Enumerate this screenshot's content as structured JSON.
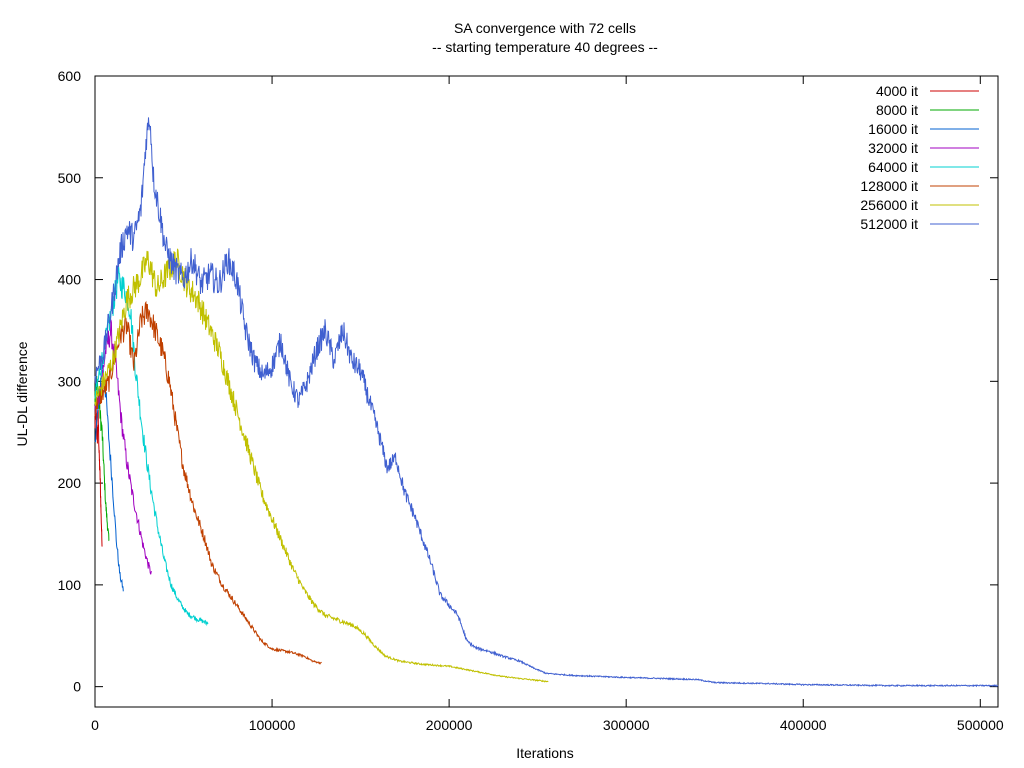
{
  "chart_data": {
    "type": "line",
    "title": "SA convergence with 72 cells",
    "subtitle": "-- starting temperature 40 degrees --",
    "xlabel": "Iterations",
    "ylabel": "UL-DL difference",
    "xlim": [
      0,
      510000
    ],
    "ylim": [
      -20,
      600
    ],
    "x_ticks": [
      0,
      100000,
      200000,
      300000,
      400000,
      500000
    ],
    "y_ticks": [
      0,
      100,
      200,
      300,
      400,
      500,
      600
    ],
    "grid": false,
    "legend_position": "top-right",
    "series": [
      {
        "name": "4000 it",
        "color": "#cc0000",
        "points": [
          [
            0,
            255
          ],
          [
            600,
            275
          ],
          [
            1200,
            240
          ],
          [
            1800,
            265
          ],
          [
            2400,
            225
          ],
          [
            3000,
            200
          ],
          [
            3500,
            165
          ],
          [
            4000,
            140
          ]
        ]
      },
      {
        "name": "8000 it",
        "color": "#00aa00",
        "points": [
          [
            0,
            285
          ],
          [
            1000,
            300
          ],
          [
            2000,
            285
          ],
          [
            3000,
            265
          ],
          [
            4000,
            250
          ],
          [
            5000,
            215
          ],
          [
            6000,
            180
          ],
          [
            7000,
            160
          ],
          [
            8000,
            140
          ]
        ]
      },
      {
        "name": "16000 it",
        "color": "#0060d0",
        "points": [
          [
            0,
            245
          ],
          [
            2000,
            275
          ],
          [
            4000,
            320
          ],
          [
            6000,
            290
          ],
          [
            8000,
            240
          ],
          [
            10000,
            195
          ],
          [
            12000,
            145
          ],
          [
            14000,
            110
          ],
          [
            16000,
            95
          ]
        ]
      },
      {
        "name": "32000 it",
        "color": "#a000c0",
        "points": [
          [
            0,
            270
          ],
          [
            3000,
            290
          ],
          [
            6000,
            330
          ],
          [
            9000,
            350
          ],
          [
            12000,
            310
          ],
          [
            15000,
            260
          ],
          [
            18000,
            220
          ],
          [
            21000,
            190
          ],
          [
            24000,
            165
          ],
          [
            27000,
            140
          ],
          [
            30000,
            120
          ],
          [
            32000,
            110
          ]
        ]
      },
      {
        "name": "64000 it",
        "color": "#00d0d0",
        "points": [
          [
            0,
            285
          ],
          [
            5000,
            330
          ],
          [
            10000,
            375
          ],
          [
            13000,
            400
          ],
          [
            17000,
            390
          ],
          [
            20000,
            370
          ],
          [
            23000,
            310
          ],
          [
            27000,
            250
          ],
          [
            31000,
            200
          ],
          [
            35000,
            160
          ],
          [
            39000,
            125
          ],
          [
            43000,
            100
          ],
          [
            47000,
            85
          ],
          [
            52000,
            72
          ],
          [
            57000,
            67
          ],
          [
            64000,
            62
          ]
        ]
      },
      {
        "name": "128000 it",
        "color": "#c04000",
        "points": [
          [
            0,
            275
          ],
          [
            8000,
            300
          ],
          [
            14000,
            345
          ],
          [
            18000,
            355
          ],
          [
            22000,
            315
          ],
          [
            26000,
            360
          ],
          [
            30000,
            370
          ],
          [
            34000,
            350
          ],
          [
            38000,
            330
          ],
          [
            42000,
            300
          ],
          [
            46000,
            255
          ],
          [
            50000,
            215
          ],
          [
            56000,
            175
          ],
          [
            62000,
            145
          ],
          [
            66000,
            120
          ],
          [
            72000,
            100
          ],
          [
            78000,
            85
          ],
          [
            84000,
            70
          ],
          [
            90000,
            55
          ],
          [
            94000,
            45
          ],
          [
            100000,
            37
          ],
          [
            110000,
            34
          ],
          [
            118000,
            30
          ],
          [
            123000,
            25
          ],
          [
            128000,
            23
          ]
        ]
      },
      {
        "name": "256000 it",
        "color": "#c0c000",
        "points": [
          [
            0,
            280
          ],
          [
            10000,
            320
          ],
          [
            18000,
            380
          ],
          [
            25000,
            400
          ],
          [
            30000,
            420
          ],
          [
            35000,
            390
          ],
          [
            40000,
            405
          ],
          [
            46000,
            420
          ],
          [
            52000,
            395
          ],
          [
            58000,
            380
          ],
          [
            64000,
            355
          ],
          [
            70000,
            330
          ],
          [
            76000,
            295
          ],
          [
            82000,
            260
          ],
          [
            88000,
            225
          ],
          [
            94000,
            190
          ],
          [
            100000,
            165
          ],
          [
            106000,
            140
          ],
          [
            112000,
            115
          ],
          [
            118000,
            95
          ],
          [
            124000,
            80
          ],
          [
            130000,
            70
          ],
          [
            138000,
            65
          ],
          [
            146000,
            60
          ],
          [
            152000,
            52
          ],
          [
            158000,
            40
          ],
          [
            164000,
            30
          ],
          [
            172000,
            25
          ],
          [
            185000,
            22
          ],
          [
            200000,
            20
          ],
          [
            215000,
            15
          ],
          [
            230000,
            10
          ],
          [
            245000,
            7
          ],
          [
            256000,
            5
          ]
        ]
      },
      {
        "name": "512000 it",
        "color": "#4060d0",
        "points": [
          [
            0,
            305
          ],
          [
            5000,
            330
          ],
          [
            10000,
            380
          ],
          [
            14000,
            425
          ],
          [
            18000,
            450
          ],
          [
            22000,
            440
          ],
          [
            26000,
            470
          ],
          [
            29000,
            540
          ],
          [
            31000,
            560
          ],
          [
            33000,
            500
          ],
          [
            36000,
            470
          ],
          [
            40000,
            430
          ],
          [
            45000,
            410
          ],
          [
            50000,
            400
          ],
          [
            55000,
            420
          ],
          [
            60000,
            395
          ],
          [
            65000,
            405
          ],
          [
            70000,
            395
          ],
          [
            75000,
            420
          ],
          [
            80000,
            400
          ],
          [
            85000,
            350
          ],
          [
            90000,
            320
          ],
          [
            95000,
            305
          ],
          [
            100000,
            315
          ],
          [
            105000,
            340
          ],
          [
            110000,
            300
          ],
          [
            115000,
            280
          ],
          [
            120000,
            300
          ],
          [
            125000,
            330
          ],
          [
            130000,
            350
          ],
          [
            135000,
            320
          ],
          [
            140000,
            350
          ],
          [
            145000,
            320
          ],
          [
            150000,
            310
          ],
          [
            155000,
            280
          ],
          [
            160000,
            250
          ],
          [
            165000,
            215
          ],
          [
            170000,
            225
          ],
          [
            175000,
            190
          ],
          [
            180000,
            170
          ],
          [
            185000,
            145
          ],
          [
            190000,
            120
          ],
          [
            195000,
            90
          ],
          [
            200000,
            80
          ],
          [
            205000,
            70
          ],
          [
            210000,
            45
          ],
          [
            215000,
            38
          ],
          [
            222000,
            35
          ],
          [
            230000,
            30
          ],
          [
            240000,
            25
          ],
          [
            248000,
            18
          ],
          [
            255000,
            13
          ],
          [
            270000,
            11
          ],
          [
            285000,
            10
          ],
          [
            300000,
            9
          ],
          [
            320000,
            8
          ],
          [
            340000,
            7
          ],
          [
            350000,
            4
          ],
          [
            380000,
            3
          ],
          [
            400000,
            2
          ],
          [
            450000,
            1
          ],
          [
            500000,
            1
          ],
          [
            510000,
            1
          ]
        ]
      }
    ]
  }
}
